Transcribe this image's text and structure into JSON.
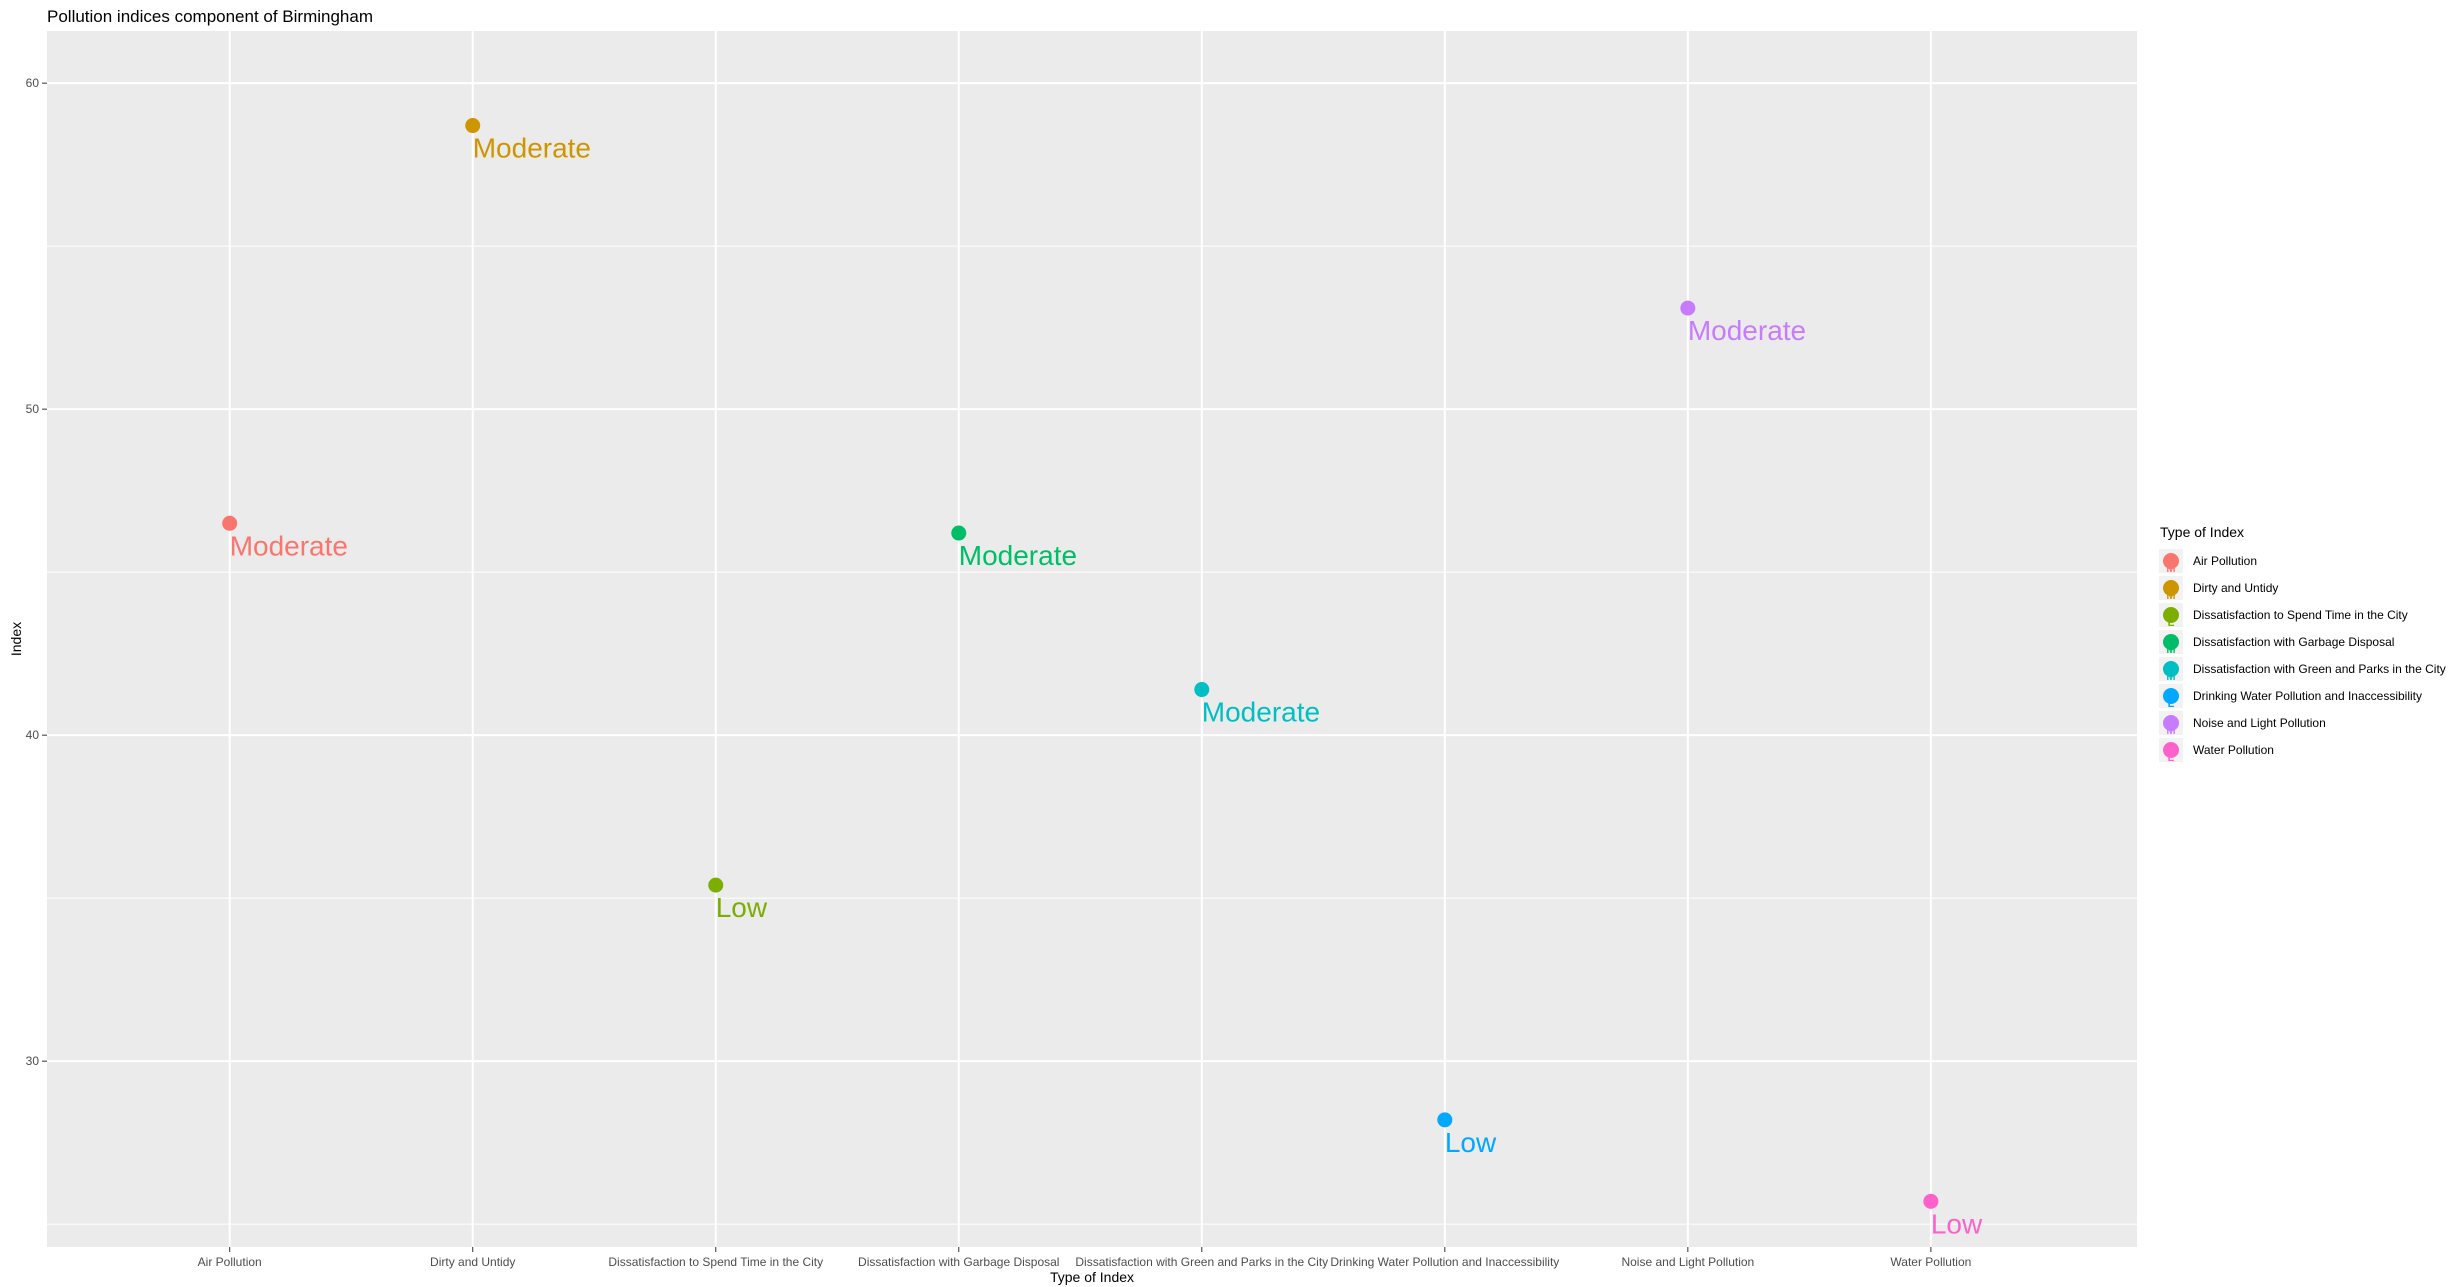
{
  "chart_data": {
    "type": "scatter",
    "title": "Pollution indices component of Birmingham",
    "xlabel": "Type of Index",
    "ylabel": "Index",
    "ylim": [
      24.3,
      61.6
    ],
    "yticks": [
      30,
      40,
      50,
      60
    ],
    "grid": true,
    "legend": {
      "title": "Type of Index",
      "position": "right"
    },
    "categories": [
      "Air Pollution",
      "Dirty and Untidy",
      "Dissatisfaction to Spend Time in the City",
      "Dissatisfaction with Garbage Disposal",
      "Dissatisfaction with Green and Parks in the City",
      "Drinking Water Pollution and Inaccessibility",
      "Noise and Light Pollution",
      "Water Pollution"
    ],
    "series": [
      {
        "name": "Air Pollution",
        "x": "Air Pollution",
        "y": 46.5,
        "label": "Moderate",
        "color": "#F8766D"
      },
      {
        "name": "Dirty and Untidy",
        "x": "Dirty and Untidy",
        "y": 58.7,
        "label": "Moderate",
        "color": "#CD9600"
      },
      {
        "name": "Dissatisfaction to Spend Time in the City",
        "x": "Dissatisfaction to Spend Time in the City",
        "y": 35.4,
        "label": "Low",
        "color": "#7CAE00"
      },
      {
        "name": "Dissatisfaction with Garbage Disposal",
        "x": "Dissatisfaction with Garbage Disposal",
        "y": 46.2,
        "label": "Moderate",
        "color": "#00BE67"
      },
      {
        "name": "Dissatisfaction with Green and Parks in the City",
        "x": "Dissatisfaction with Green and Parks in the City",
        "y": 41.4,
        "label": "Moderate",
        "color": "#00BFC4"
      },
      {
        "name": "Drinking Water Pollution and Inaccessibility",
        "x": "Drinking Water Pollution and Inaccessibility",
        "y": 28.2,
        "label": "Low",
        "color": "#00A9FF"
      },
      {
        "name": "Noise and Light Pollution",
        "x": "Noise and Light Pollution",
        "y": 53.1,
        "label": "Moderate",
        "color": "#C77CFF"
      },
      {
        "name": "Water Pollution",
        "x": "Water Pollution",
        "y": 25.7,
        "label": "Low",
        "color": "#FF61CC"
      }
    ]
  }
}
